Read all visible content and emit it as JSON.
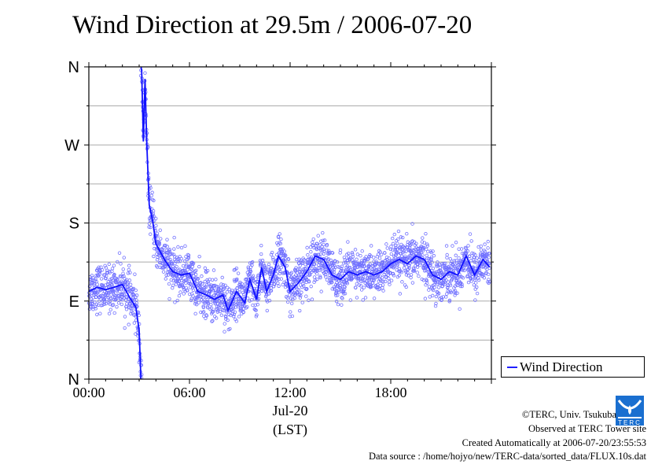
{
  "chart_data": {
    "type": "scatter",
    "title": "Wind Direction at 29.5m / 2006-07-20",
    "xlabel_date": "Jul-20",
    "xlabel_unit": "(LST)",
    "x_ticks": [
      {
        "value": 0,
        "label": "00:00"
      },
      {
        "value": 6,
        "label": "06:00"
      },
      {
        "value": 12,
        "label": "12:00"
      },
      {
        "value": 18,
        "label": "18:00"
      }
    ],
    "xlim": [
      0,
      24
    ],
    "y_ticks": [
      {
        "value": 0,
        "label": "N"
      },
      {
        "value": 90,
        "label": "E"
      },
      {
        "value": 180,
        "label": "S"
      },
      {
        "value": 270,
        "label": "W"
      },
      {
        "value": 360,
        "label": "N"
      }
    ],
    "ylim": [
      0,
      360
    ],
    "grid": true,
    "legend": {
      "label": "Wind Direction",
      "placement": "outside-bottom-right"
    },
    "series_color": "#1010ff",
    "scatter_color": "#7070ff",
    "scatter_spread_deg": 13,
    "mean_line": {
      "hours": [
        0,
        0.5,
        1,
        1.5,
        2,
        2.5,
        2.8,
        3,
        3.1,
        3.15,
        3.25,
        3.35,
        3.45,
        3.6,
        3.8,
        4,
        4.5,
        5,
        5.5,
        6,
        6.5,
        7,
        7.5,
        8,
        8.3,
        8.8,
        9.3,
        9.6,
        10,
        10.3,
        10.6,
        11,
        11.3,
        11.7,
        12,
        12.5,
        13,
        13.5,
        14,
        14.5,
        15,
        15.5,
        16,
        16.5,
        17,
        17.5,
        18,
        18.5,
        19,
        19.5,
        20,
        20.5,
        21,
        21.5,
        22,
        22.5,
        23,
        23.5,
        23.9
      ],
      "direction_deg": [
        101,
        106,
        103,
        106,
        109,
        92,
        83,
        56,
        2,
        355,
        274,
        346,
        274,
        201,
        183,
        156,
        138,
        124,
        120,
        122,
        101,
        97,
        92,
        97,
        79,
        101,
        88,
        115,
        92,
        129,
        101,
        120,
        142,
        129,
        101,
        111,
        124,
        142,
        138,
        120,
        115,
        124,
        120,
        124,
        120,
        124,
        133,
        138,
        133,
        142,
        138,
        120,
        115,
        124,
        120,
        142,
        120,
        138,
        129
      ]
    }
  },
  "credits": {
    "copyright": "©TERC, Univ. Tsukuba",
    "site": "Observed at TERC Tower site",
    "created": "Created Automatically at 2006-07-20/23:55:53",
    "source": "Data source : /home/hojyo/new/TERC-data/sorted_data/FLUX.10s.dat",
    "logo_text": "TERC"
  }
}
